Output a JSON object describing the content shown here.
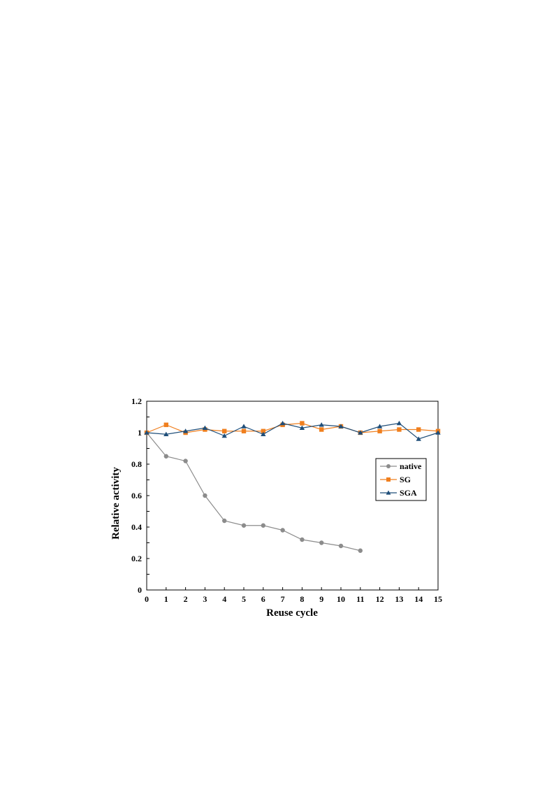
{
  "chart_data": {
    "type": "line",
    "title": "",
    "xlabel": "Reuse cycle",
    "ylabel": "Relative activity",
    "xlim": [
      0,
      15
    ],
    "ylim": [
      0,
      1.2
    ],
    "x_ticks": [
      "0",
      "1",
      "2",
      "3",
      "4",
      "5",
      "6",
      "7",
      "8",
      "9",
      "10",
      "11",
      "12",
      "13",
      "14",
      "15"
    ],
    "y_ticks": [
      "0",
      "0.2",
      "0.4",
      "0.6",
      "0.8",
      "1",
      "1.2"
    ],
    "grid": false,
    "legend_position": "center-right",
    "series": [
      {
        "name": "native",
        "color": "#8c8c8c",
        "marker": "circle",
        "x": [
          0,
          1,
          2,
          3,
          4,
          5,
          6,
          7,
          8,
          9,
          10,
          11
        ],
        "values": [
          1.0,
          0.85,
          0.82,
          0.6,
          0.44,
          0.41,
          0.41,
          0.38,
          0.32,
          0.3,
          0.28,
          0.25
        ]
      },
      {
        "name": "SG",
        "color": "#f07f1e",
        "marker": "square",
        "x": [
          0,
          1,
          2,
          3,
          4,
          5,
          6,
          7,
          8,
          9,
          10,
          11,
          12,
          13,
          14,
          15
        ],
        "values": [
          1.0,
          1.05,
          1.0,
          1.02,
          1.01,
          1.01,
          1.01,
          1.05,
          1.06,
          1.02,
          1.04,
          1.0,
          1.01,
          1.02,
          1.02,
          1.01
        ]
      },
      {
        "name": "SGA",
        "color": "#1f4e79",
        "marker": "triangle",
        "x": [
          0,
          1,
          2,
          3,
          4,
          5,
          6,
          7,
          8,
          9,
          10,
          11,
          12,
          13,
          14,
          15
        ],
        "values": [
          1.0,
          0.99,
          1.01,
          1.03,
          0.98,
          1.04,
          0.99,
          1.06,
          1.03,
          1.05,
          1.04,
          1.0,
          1.04,
          1.06,
          0.96,
          1.0
        ]
      }
    ]
  }
}
